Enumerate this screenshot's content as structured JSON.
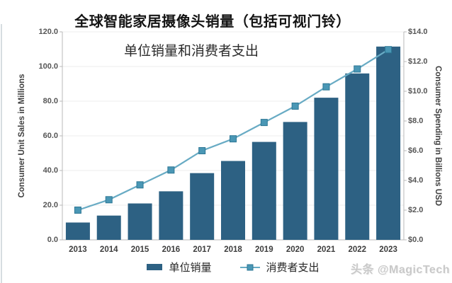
{
  "header": {
    "title": "全球智能家居摄像头销量（包括可视门铃）",
    "subtitle": "单位销量和消费者支出"
  },
  "watermark": "头条 @MagicTech",
  "chart_data": {
    "type": "bar",
    "combo": "bar+line dual-axis",
    "title": "全球智能家居摄像头销量（包括可视门铃）",
    "subtitle": "单位销量和消费者支出",
    "categories": [
      "2013",
      "2014",
      "2015",
      "2016",
      "2017",
      "2018",
      "2019",
      "2020",
      "2021",
      "2022",
      "2023"
    ],
    "series": [
      {
        "name": "单位销量",
        "type": "bar",
        "axis": "left",
        "color": "#2d6183",
        "values": [
          10,
          14,
          21,
          28,
          38.5,
          45.5,
          56.5,
          68,
          82,
          96,
          111.5
        ]
      },
      {
        "name": "消费者支出",
        "type": "line",
        "axis": "right",
        "color": "#68abc4",
        "marker_color": "#4a97b5",
        "marker_border": "#2e7795",
        "values": [
          2.0,
          2.7,
          3.7,
          4.7,
          6.0,
          6.8,
          7.9,
          9.0,
          10.3,
          11.5,
          12.8
        ]
      }
    ],
    "left_axis": {
      "label": "Consumer Unit Sales in Millions",
      "min": 0,
      "max": 120,
      "tick_step": 20,
      "ticks": [
        "0.0",
        "20.0",
        "40.0",
        "60.0",
        "80.0",
        "100.0",
        "120.0"
      ]
    },
    "right_axis": {
      "label": "Consumer Spending in Billions USD",
      "min": 0,
      "max": 14,
      "tick_step": 2,
      "ticks": [
        "$0.0",
        "$2.0",
        "$4.0",
        "$6.0",
        "$8.0",
        "$10.0",
        "$12.0",
        "$14.0"
      ]
    },
    "grid": true,
    "legend_position": "bottom"
  },
  "colors": {
    "bar": "#2d6183",
    "line": "#68abc4",
    "marker": "#4a97b5",
    "marker_border": "#2e7795",
    "grid": "#ececec",
    "axis": "#b9b9b9",
    "tick_text": "#555555",
    "title_text": "#141414",
    "watermark_text": "#c9c9c9"
  }
}
